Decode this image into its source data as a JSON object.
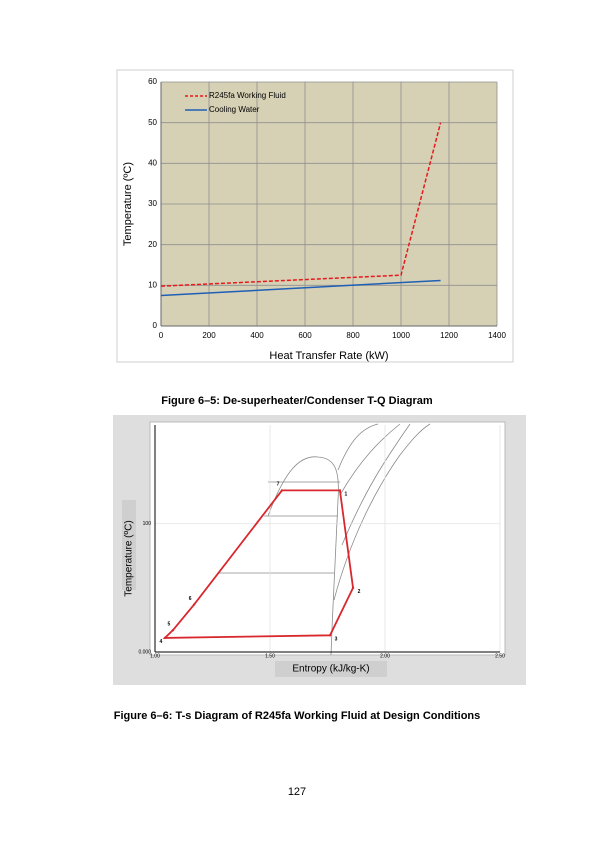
{
  "chart_data": [
    {
      "type": "line",
      "x_label": "Heat Transfer Rate (kW)",
      "y_label": "Temperature (ºC)",
      "xlim": [
        0,
        1400
      ],
      "xticks": [
        0,
        200,
        400,
        600,
        800,
        1000,
        1200,
        1400
      ],
      "ylim": [
        0,
        60
      ],
      "yticks": [
        0,
        10,
        20,
        30,
        40,
        50,
        60
      ],
      "grid": true,
      "legend": "upper left",
      "series": [
        {
          "name": "R245fa Working Fluid",
          "color": "#e8191c",
          "dashed": true,
          "x": [
            0,
            1000,
            1165
          ],
          "values": [
            9.8,
            12.5,
            50
          ]
        },
        {
          "name": "Cooling Water",
          "color": "#1f5fb5",
          "dashed": false,
          "x": [
            0,
            1165
          ],
          "values": [
            7.5,
            11.2
          ]
        }
      ]
    },
    {
      "type": "scatter",
      "x_label": "Entropy (kJ/kg-K)",
      "y_label": "Temperature (ºC)",
      "xlim": [
        1.0,
        2.5
      ],
      "xticks": [
        {
          "value": 1.0,
          "label": "1.00"
        },
        {
          "value": 1.5,
          "label": "1.50"
        },
        {
          "value": 2.0,
          "label": "2.00"
        },
        {
          "value": 2.5,
          "label": "2.50"
        }
      ],
      "ylim": [
        0,
        177
      ],
      "yticks": [
        {
          "value": 0,
          "label": "0.000"
        },
        100
      ],
      "grid": true,
      "series": [
        {
          "color": "#d8282d",
          "point_labels": [
            "1",
            "2",
            "3",
            "4",
            "5",
            "6",
            "7"
          ],
          "x": [
            1.804,
            1.861,
            1.761,
            1.043,
            1.078,
            1.17,
            1.552
          ],
          "values": [
            126,
            50,
            13,
            11,
            17,
            37,
            126
          ]
        }
      ]
    }
  ],
  "captions": [
    "Figure 6–5: De-superheater/Condenser T-Q Diagram",
    "Figure 6–6: T-s Diagram of R245fa Working Fluid at Design Conditions"
  ],
  "page_number": "127"
}
